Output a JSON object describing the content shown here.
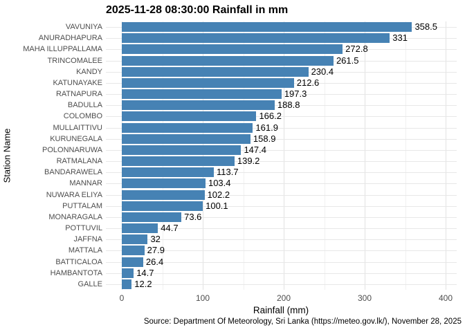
{
  "title": "2025-11-28 08:30:00 Rainfall in mm",
  "footer": "Source: Department Of Meteorology, Sri Lanka (https://meteo.gov.lk/), November 28, 2025",
  "chart_data": {
    "type": "bar",
    "orientation": "horizontal",
    "title": "2025-11-28 08:30:00 Rainfall in mm",
    "xlabel": "Rainfall (mm)",
    "ylabel": "Station Name",
    "xlim": [
      0,
      410
    ],
    "x_major_ticks": [
      0,
      100,
      200,
      300,
      400
    ],
    "x_minor_ticks": [
      50,
      150,
      250,
      350
    ],
    "grid": true,
    "legend": "none",
    "bar_color": "#4682B4",
    "categories": [
      "VAVUNIYA",
      "ANURADHAPURA",
      "MAHA ILLUPPALLAMA",
      "TRINCOMALEE",
      "KANDY",
      "KATUNAYAKE",
      "RATNAPURA",
      "BADULLA",
      "COLOMBO",
      "MULLAITTIVU",
      "KURUNEGALA",
      "POLONNARUWA",
      "RATMALANA",
      "BANDARAWELA",
      "MANNAR",
      "NUWARA ELIYA",
      "PUTTALAM",
      "MONARAGALA",
      "POTTUVIL",
      "JAFFNA",
      "MATTALA",
      "BATTICALOA",
      "HAMBANTOTA",
      "GALLE"
    ],
    "values": [
      358.5,
      331,
      272.8,
      261.5,
      230.4,
      212.6,
      197.3,
      188.8,
      166.2,
      161.9,
      158.9,
      147.4,
      139.2,
      113.7,
      103.4,
      102.2,
      100.1,
      73.6,
      44.7,
      32,
      27.9,
      26.4,
      14.7,
      12.2
    ],
    "value_labels": [
      "358.5",
      "331",
      "272.8",
      "261.5",
      "230.4",
      "212.6",
      "197.3",
      "188.8",
      "166.2",
      "161.9",
      "158.9",
      "147.4",
      "139.2",
      "113.7",
      "103.4",
      "102.2",
      "100.1",
      "73.6",
      "44.7",
      "32",
      "27.9",
      "26.4",
      "14.7",
      "12.2"
    ]
  },
  "colors": {
    "bar": "#4682B4",
    "grid_major": "#e2e2e2",
    "grid_minor": "#f1f1f1",
    "axis_text": "#4d4d4d",
    "text": "#000000",
    "background": "#ffffff"
  }
}
